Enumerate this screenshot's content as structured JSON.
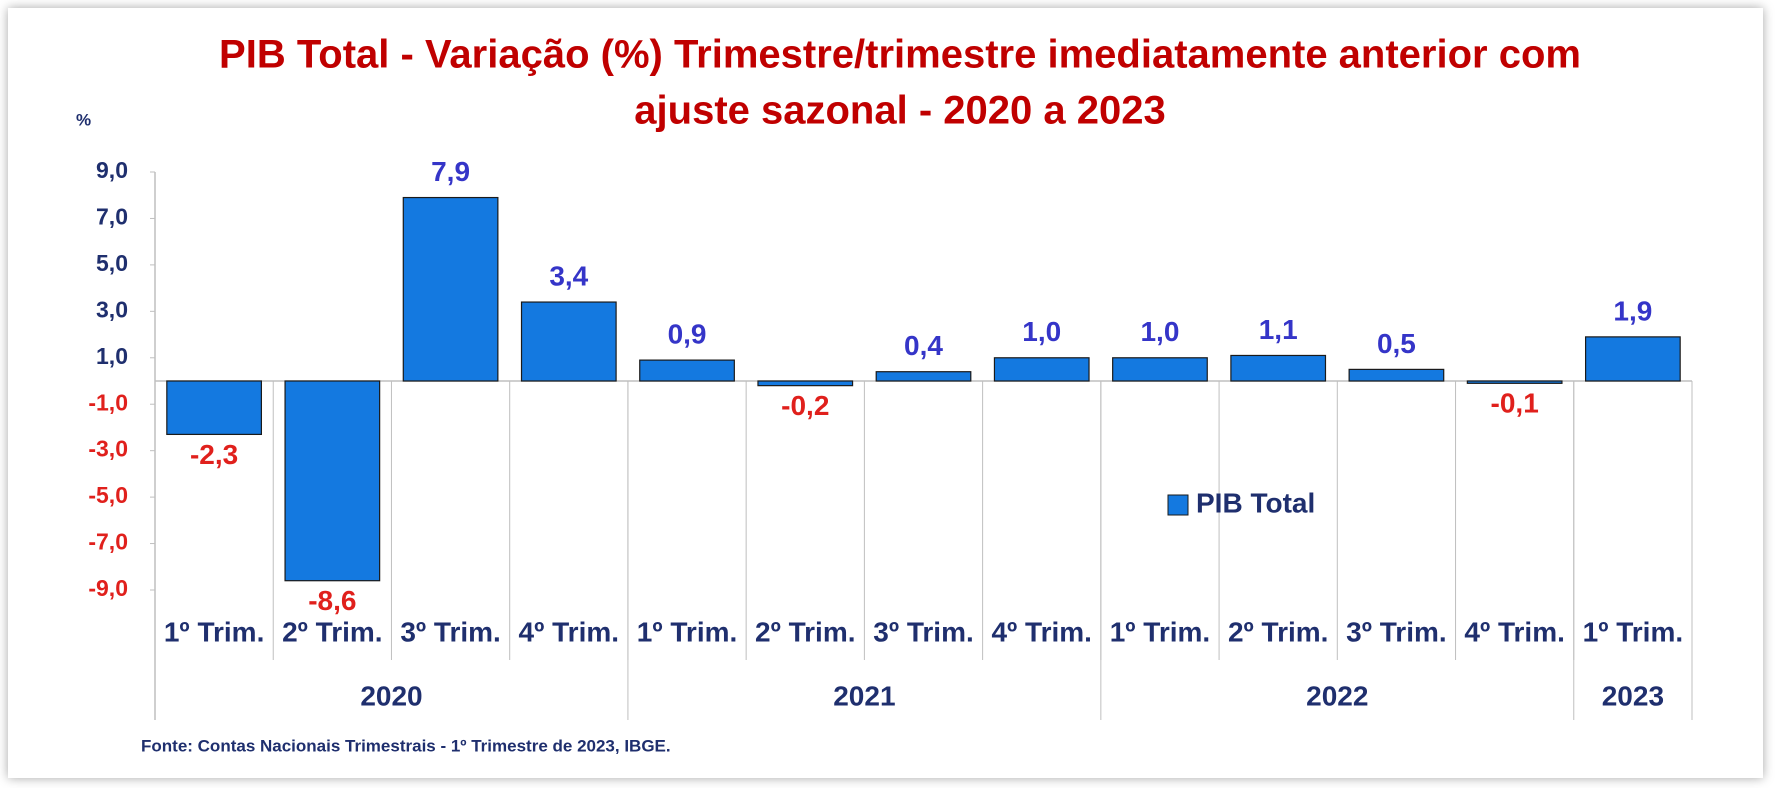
{
  "chart_data": {
    "type": "bar",
    "title": [
      "PIB Total - Variação (%) Trimestre/trimestre imediatamente anterior com",
      "ajuste sazonal - 2020 a 2023"
    ],
    "title_color": "#c00000",
    "y_label": "%",
    "source": "Fonte: Contas Nacionais Trimestrais - 1º Trimestre de 2023, IBGE.",
    "groups": [
      {
        "name": "2020",
        "categories": [
          "1º Trim.",
          "2º Trim.",
          "3º Trim.",
          "4º Trim."
        ]
      },
      {
        "name": "2021",
        "categories": [
          "1º Trim.",
          "2º Trim.",
          "3º Trim.",
          "4º Trim."
        ]
      },
      {
        "name": "2022",
        "categories": [
          "1º Trim.",
          "2º Trim.",
          "3º Trim.",
          "4º Trim."
        ]
      },
      {
        "name": "2023",
        "categories": [
          "1º Trim."
        ]
      }
    ],
    "series": [
      {
        "name": "PIB Total",
        "color": "#1479e0",
        "values": [
          -2.3,
          -8.6,
          7.9,
          3.4,
          0.9,
          -0.2,
          0.4,
          1.0,
          1.0,
          1.1,
          0.5,
          -0.1,
          1.9
        ],
        "value_labels": [
          "-2,3",
          "-8,6",
          "7,9",
          "3,4",
          "0,9",
          "-0,2",
          "0,4",
          "1,0",
          "1,0",
          "1,1",
          "0,5",
          "-0,1",
          "1,9"
        ]
      }
    ],
    "ylim": [
      -9,
      9
    ],
    "yticks": [
      {
        "value": 9,
        "label": "9,0"
      },
      {
        "value": 7,
        "label": "7,0"
      },
      {
        "value": 5,
        "label": "5,0"
      },
      {
        "value": 3,
        "label": "3,0"
      },
      {
        "value": 1,
        "label": "1,0"
      },
      {
        "value": -1,
        "label": "-1,0"
      },
      {
        "value": -3,
        "label": "-3,0"
      },
      {
        "value": -5,
        "label": "-5,0"
      },
      {
        "value": -7,
        "label": "-7,0"
      },
      {
        "value": -9,
        "label": "-9,0"
      }
    ],
    "positive_color": "#3535c8",
    "negative_color": "#e0201c",
    "tick_positive_color": "#1f2f6e",
    "category_color": "#1f2f6e",
    "legend": "center-right",
    "grid": false
  }
}
